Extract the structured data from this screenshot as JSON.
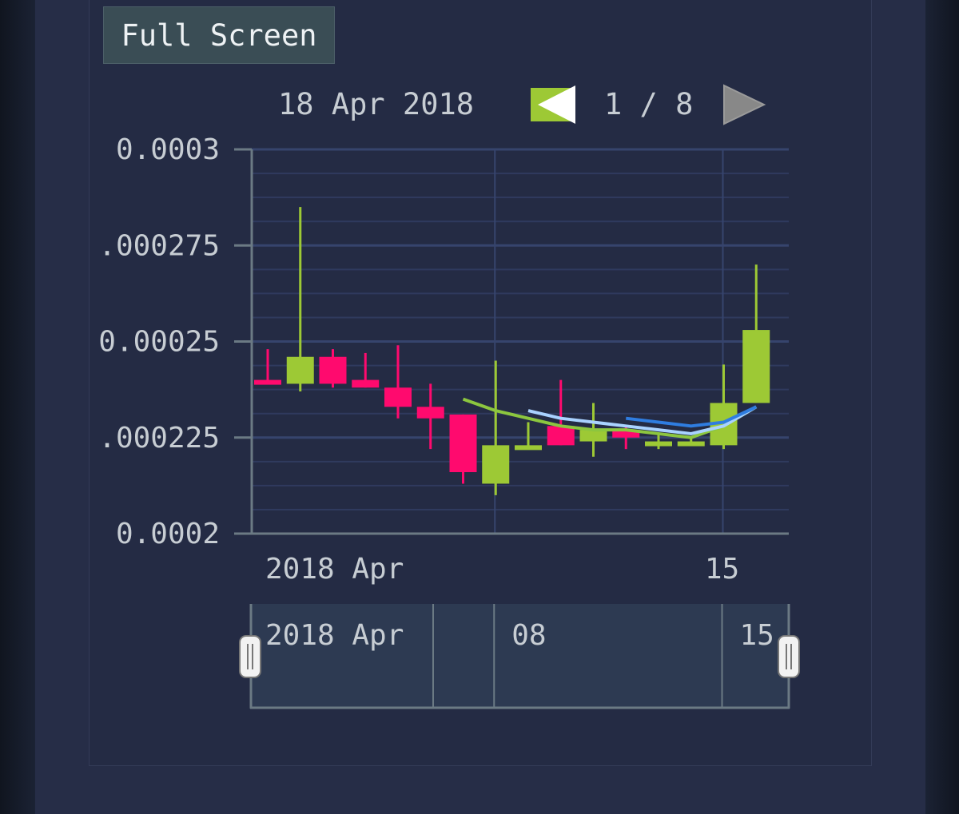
{
  "toolbar": {
    "full_screen_label": "Full Screen"
  },
  "pager": {
    "date_label": "18 Apr 2018",
    "page_text": "1 / 8"
  },
  "colors": {
    "up": "#9dc935",
    "down": "#ff0a6e",
    "ma_green": "#8cc63f",
    "ma_light": "#a9d2ff",
    "ma_blue": "#2f7de0",
    "grid": "#34416a",
    "axis": "#6b7a84",
    "text": "#c7cdd3",
    "prev_button": "#9dc935",
    "next_button": "#888888"
  },
  "chart_data": {
    "type": "candlestick",
    "ylim": [
      0.0002,
      0.0003
    ],
    "y_ticks": [
      {
        "value": 0.0002,
        "label": "0.0002"
      },
      {
        "value": 0.000225,
        "label": ".000225"
      },
      {
        "value": 0.00025,
        "label": "0.00025"
      },
      {
        "value": 0.000275,
        "label": ".000275"
      },
      {
        "value": 0.0003,
        "label": "0.0003"
      }
    ],
    "x_range": [
      "2018-04-01",
      "2018-04-17"
    ],
    "x_tick_labels": [
      {
        "date": "2018-04-01",
        "label": "2018 Apr"
      },
      {
        "date": "2018-04-15",
        "label": "15"
      }
    ],
    "x_gridlines": [
      "2018-04-08",
      "2018-04-15"
    ],
    "candles": [
      {
        "date": "2018-04-01",
        "open": 0.00024,
        "high": 0.000248,
        "low": 0.000239,
        "close": 0.000239
      },
      {
        "date": "2018-04-02",
        "open": 0.000239,
        "high": 0.000285,
        "low": 0.000237,
        "close": 0.000246
      },
      {
        "date": "2018-04-03",
        "open": 0.000246,
        "high": 0.000248,
        "low": 0.000238,
        "close": 0.000239
      },
      {
        "date": "2018-04-04",
        "open": 0.00024,
        "high": 0.000247,
        "low": 0.000238,
        "close": 0.000238
      },
      {
        "date": "2018-04-05",
        "open": 0.000238,
        "high": 0.000249,
        "low": 0.00023,
        "close": 0.000233
      },
      {
        "date": "2018-04-06",
        "open": 0.000233,
        "high": 0.000239,
        "low": 0.000222,
        "close": 0.00023
      },
      {
        "date": "2018-04-07",
        "open": 0.000231,
        "high": 0.000231,
        "low": 0.000213,
        "close": 0.000216
      },
      {
        "date": "2018-04-08",
        "open": 0.000213,
        "high": 0.000245,
        "low": 0.00021,
        "close": 0.000223
      },
      {
        "date": "2018-04-09",
        "open": 0.000222,
        "high": 0.000229,
        "low": 0.000222,
        "close": 0.000223
      },
      {
        "date": "2018-04-10",
        "open": 0.000228,
        "high": 0.00024,
        "low": 0.000223,
        "close": 0.000223
      },
      {
        "date": "2018-04-11",
        "open": 0.000224,
        "high": 0.000234,
        "low": 0.00022,
        "close": 0.000227
      },
      {
        "date": "2018-04-12",
        "open": 0.000227,
        "high": 0.000228,
        "low": 0.000222,
        "close": 0.000225
      },
      {
        "date": "2018-04-13",
        "open": 0.000223,
        "high": 0.000226,
        "low": 0.000222,
        "close": 0.000224
      },
      {
        "date": "2018-04-14",
        "open": 0.000223,
        "high": 0.000225,
        "low": 0.000223,
        "close": 0.000224
      },
      {
        "date": "2018-04-15",
        "open": 0.000223,
        "high": 0.000244,
        "low": 0.000222,
        "close": 0.000234
      },
      {
        "date": "2018-04-16",
        "open": 0.000234,
        "high": 0.00027,
        "low": 0.000234,
        "close": 0.000253
      }
    ],
    "moving_averages": [
      {
        "color_key": "ma_green",
        "points": [
          {
            "date": "2018-04-07",
            "value": 0.000235
          },
          {
            "date": "2018-04-08",
            "value": 0.000232
          },
          {
            "date": "2018-04-09",
            "value": 0.00023
          },
          {
            "date": "2018-04-10",
            "value": 0.000228
          },
          {
            "date": "2018-04-11",
            "value": 0.000227
          },
          {
            "date": "2018-04-12",
            "value": 0.000227
          },
          {
            "date": "2018-04-13",
            "value": 0.000226
          },
          {
            "date": "2018-04-14",
            "value": 0.000225
          },
          {
            "date": "2018-04-15",
            "value": 0.000228
          },
          {
            "date": "2018-04-16",
            "value": 0.000233
          }
        ]
      },
      {
        "color_key": "ma_light",
        "points": [
          {
            "date": "2018-04-09",
            "value": 0.000232
          },
          {
            "date": "2018-04-10",
            "value": 0.00023
          },
          {
            "date": "2018-04-11",
            "value": 0.000229
          },
          {
            "date": "2018-04-12",
            "value": 0.000228
          },
          {
            "date": "2018-04-13",
            "value": 0.000227
          },
          {
            "date": "2018-04-14",
            "value": 0.000226
          },
          {
            "date": "2018-04-15",
            "value": 0.000228
          },
          {
            "date": "2018-04-16",
            "value": 0.000233
          }
        ]
      },
      {
        "color_key": "ma_blue",
        "points": [
          {
            "date": "2018-04-12",
            "value": 0.00023
          },
          {
            "date": "2018-04-13",
            "value": 0.000229
          },
          {
            "date": "2018-04-14",
            "value": 0.000228
          },
          {
            "date": "2018-04-15",
            "value": 0.000229
          },
          {
            "date": "2018-04-16",
            "value": 0.000233
          }
        ]
      }
    ],
    "navigator": {
      "tick_labels": [
        {
          "date": "2018-04-01",
          "label": "2018 Apr"
        },
        {
          "date": "2018-04-08",
          "label": "08"
        },
        {
          "date": "2018-04-15",
          "label": "15"
        }
      ]
    }
  }
}
